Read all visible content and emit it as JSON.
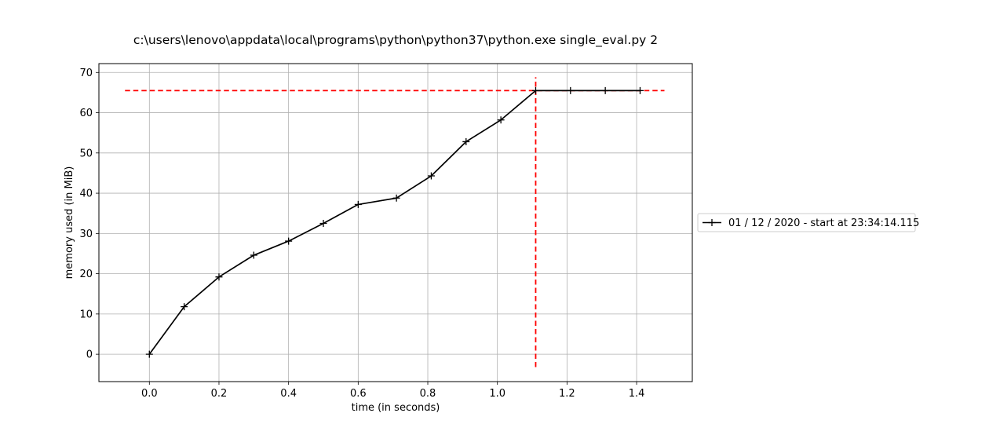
{
  "chart_data": {
    "type": "line",
    "title": "c:\\users\\lenovo\\appdata\\local\\programs\\python\\python37\\python.exe single_eval.py 2",
    "xlabel": "time (in seconds)",
    "ylabel": "memory used (in MiB)",
    "xlim": [
      -0.145,
      1.56
    ],
    "ylim": [
      -6.8,
      72.2
    ],
    "xticks": [
      0.0,
      0.2,
      0.4,
      0.6,
      0.8,
      1.0,
      1.2,
      1.4
    ],
    "xtick_labels": [
      "0.0",
      "0.2",
      "0.4",
      "0.6",
      "0.8",
      "1.0",
      "1.2",
      "1.4"
    ],
    "yticks": [
      0,
      10,
      20,
      30,
      40,
      50,
      60,
      70
    ],
    "ytick_labels": [
      "0",
      "10",
      "20",
      "30",
      "40",
      "50",
      "60",
      "70"
    ],
    "grid": true,
    "legend_position": "right",
    "series": [
      {
        "name": "01 / 12 / 2020 - start at 23:34:14.115",
        "color": "#000000",
        "marker": "plus",
        "x": [
          0.0,
          0.1,
          0.2,
          0.3,
          0.4,
          0.5,
          0.6,
          0.71,
          0.81,
          0.91,
          1.01,
          1.11,
          1.21,
          1.31,
          1.41
        ],
        "y": [
          0.0,
          11.8,
          19.2,
          24.6,
          28.1,
          32.5,
          37.2,
          38.8,
          44.3,
          52.8,
          58.2,
          65.5,
          65.5,
          65.5,
          65.5
        ]
      }
    ],
    "reference_lines": [
      {
        "orientation": "horizontal",
        "y": 65.5,
        "x_from": -0.07,
        "x_to": 1.48,
        "color": "#ff0000",
        "style": "dashed"
      },
      {
        "orientation": "vertical",
        "x": 1.11,
        "y_from": -3.2,
        "y_to": 68.8,
        "color": "#ff0000",
        "style": "dashed"
      }
    ]
  }
}
